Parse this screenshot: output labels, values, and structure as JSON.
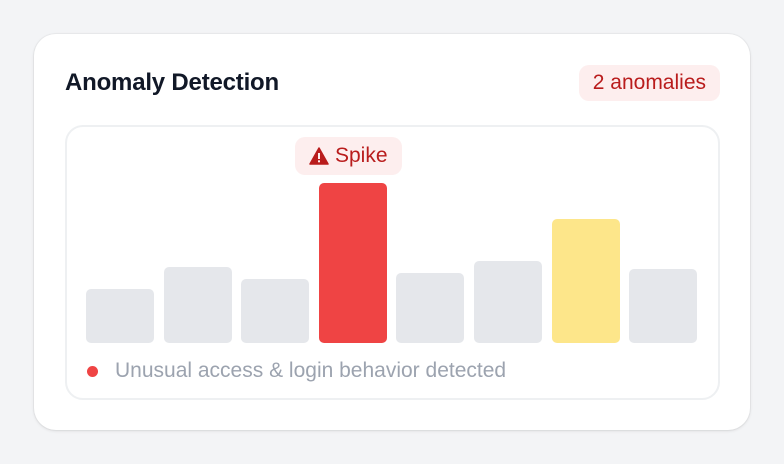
{
  "widget": {
    "title": "Anomaly Detection",
    "anomaly_count_label": "2 anomalies"
  },
  "chart_data": {
    "type": "bar",
    "values": [
      27,
      38,
      32,
      80,
      35,
      41,
      62,
      37
    ],
    "status": [
      "normal",
      "normal",
      "normal",
      "anomaly",
      "normal",
      "normal",
      "warning",
      "normal"
    ],
    "annotation": {
      "index": 3,
      "label": "Spike",
      "icon": "warning-triangle-icon"
    }
  },
  "legend": {
    "text": "Unusual access & login behavior detected",
    "color": "#ef4444"
  },
  "colors": {
    "normal": "#e5e7eb",
    "anomaly": "#ef4444",
    "warning": "#fde68a",
    "badge_bg": "#fdeeee",
    "badge_text": "#b91c1c"
  }
}
